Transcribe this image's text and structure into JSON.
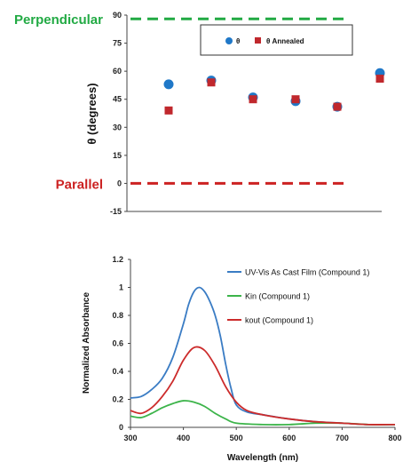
{
  "chart_data": [
    {
      "type": "scatter",
      "ylabel": "θ (degrees)",
      "ylim": [
        -15,
        90
      ],
      "yticks": [
        "-15",
        "0",
        "15",
        "30",
        "45",
        "60",
        "75",
        "90"
      ],
      "grid": false,
      "legend_position": "top-right",
      "reference_lines": [
        {
          "label": "Perpendicular",
          "y": 88,
          "color": "#22aa44"
        },
        {
          "label": "Parallel",
          "y": 0,
          "color": "#cc2222"
        }
      ],
      "series": [
        {
          "name": "θ",
          "color": "#1f78c8",
          "marker": "circle",
          "values": [
            53,
            55,
            46,
            44,
            41,
            59
          ]
        },
        {
          "name": "θ  Annealed",
          "color": "#c0282d",
          "marker": "square",
          "values": [
            39,
            54,
            45,
            45,
            41,
            56
          ]
        }
      ]
    },
    {
      "type": "line",
      "xlabel": "Wavelength (nm)",
      "ylabel": "Normalized Absorbance",
      "xlim": [
        300,
        800
      ],
      "ylim": [
        0,
        1.2
      ],
      "xticks": [
        "300",
        "400",
        "500",
        "600",
        "700",
        "800"
      ],
      "yticks": [
        "0",
        "0.2",
        "0.4",
        "0.6",
        "0.8",
        "1",
        "1.2"
      ],
      "grid": false,
      "legend_position": "top-right",
      "series": [
        {
          "name": "UV-Vis As Cast Film (Compound 1)",
          "color": "#3a7cc4",
          "x": [
            300,
            320,
            340,
            360,
            380,
            400,
            410,
            420,
            430,
            440,
            450,
            460,
            470,
            480,
            490,
            500,
            520,
            550,
            600,
            650,
            700,
            750,
            800
          ],
          "y": [
            0.21,
            0.22,
            0.27,
            0.35,
            0.5,
            0.74,
            0.88,
            0.97,
            1.0,
            0.97,
            0.9,
            0.8,
            0.65,
            0.45,
            0.28,
            0.16,
            0.11,
            0.09,
            0.06,
            0.04,
            0.03,
            0.02,
            0.02
          ]
        },
        {
          "name": "Kin (Compound 1)",
          "color": "#3cb44a",
          "x": [
            300,
            320,
            340,
            360,
            380,
            400,
            420,
            440,
            460,
            480,
            500,
            550,
            600,
            650,
            700,
            750,
            800
          ],
          "y": [
            0.08,
            0.07,
            0.1,
            0.14,
            0.17,
            0.19,
            0.18,
            0.15,
            0.1,
            0.06,
            0.03,
            0.02,
            0.02,
            0.03,
            0.03,
            0.02,
            0.02
          ]
        },
        {
          "name": "kout (Compound 1)",
          "color": "#cc2b2b",
          "x": [
            300,
            320,
            340,
            360,
            380,
            400,
            420,
            440,
            460,
            480,
            500,
            520,
            550,
            600,
            650,
            700,
            750,
            800
          ],
          "y": [
            0.12,
            0.1,
            0.14,
            0.22,
            0.33,
            0.48,
            0.57,
            0.55,
            0.44,
            0.29,
            0.18,
            0.12,
            0.09,
            0.06,
            0.04,
            0.03,
            0.02,
            0.02
          ]
        }
      ]
    }
  ]
}
